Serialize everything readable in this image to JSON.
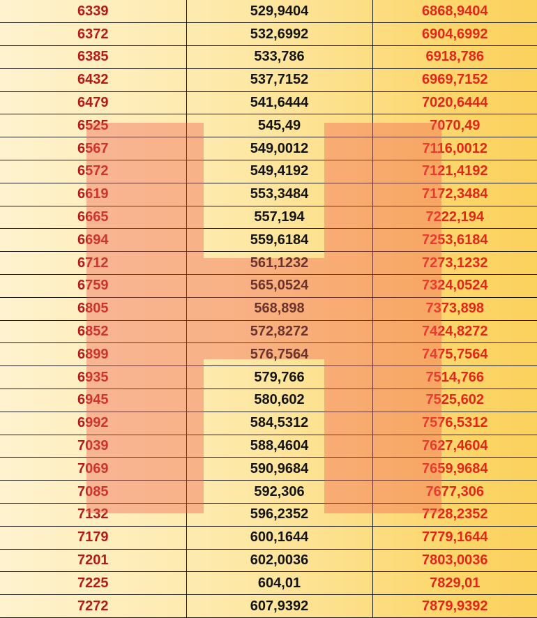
{
  "rows": [
    {
      "year": "6339",
      "tax": "529,9404",
      "total": "6868,9404"
    },
    {
      "year": "6372",
      "tax": "532,6992",
      "total": "6904,6992"
    },
    {
      "year": "6385",
      "tax": "533,786",
      "total": "6918,786"
    },
    {
      "year": "6432",
      "tax": "537,7152",
      "total": "6969,7152"
    },
    {
      "year": "6479",
      "tax": "541,6444",
      "total": "7020,6444"
    },
    {
      "year": "6525",
      "tax": "545,49",
      "total": "7070,49"
    },
    {
      "year": "6567",
      "tax": "549,0012",
      "total": "7116,0012"
    },
    {
      "year": "6572",
      "tax": "549,4192",
      "total": "7121,4192"
    },
    {
      "year": "6619",
      "tax": "553,3484",
      "total": "7172,3484"
    },
    {
      "year": "6665",
      "tax": "557,194",
      "total": "7222,194"
    },
    {
      "year": "6694",
      "tax": "559,6184",
      "total": "7253,6184"
    },
    {
      "year": "6712",
      "tax": "561,1232",
      "total": "7273,1232"
    },
    {
      "year": "6759",
      "tax": "565,0524",
      "total": "7324,0524"
    },
    {
      "year": "6805",
      "tax": "568,898",
      "total": "7373,898"
    },
    {
      "year": "6852",
      "tax": "572,8272",
      "total": "7424,8272"
    },
    {
      "year": "6899",
      "tax": "576,7564",
      "total": "7475,7564"
    },
    {
      "year": "6935",
      "tax": "579,766",
      "total": "7514,766"
    },
    {
      "year": "6945",
      "tax": "580,602",
      "total": "7525,602"
    },
    {
      "year": "6992",
      "tax": "584,5312",
      "total": "7576,5312"
    },
    {
      "year": "7039",
      "tax": "588,4604",
      "total": "7627,4604"
    },
    {
      "year": "7069",
      "tax": "590,9684",
      "total": "7659,9684"
    },
    {
      "year": "7085",
      "tax": "592,306",
      "total": "7677,306"
    },
    {
      "year": "7132",
      "tax": "596,2352",
      "total": "7728,2352"
    },
    {
      "year": "7179",
      "tax": "600,1644",
      "total": "7779,1644"
    },
    {
      "year": "7201",
      "tax": "602,0036",
      "total": "7803,0036"
    },
    {
      "year": "7225",
      "tax": "604,01",
      "total": "7829,01"
    },
    {
      "year": "7272",
      "tax": "607,9392",
      "total": "7879,9392"
    }
  ],
  "colors": {
    "first_column_text": "#b51a1a",
    "middle_column_text": "#141414",
    "last_column_text": "#e3261c",
    "watermark": "#f06050"
  }
}
